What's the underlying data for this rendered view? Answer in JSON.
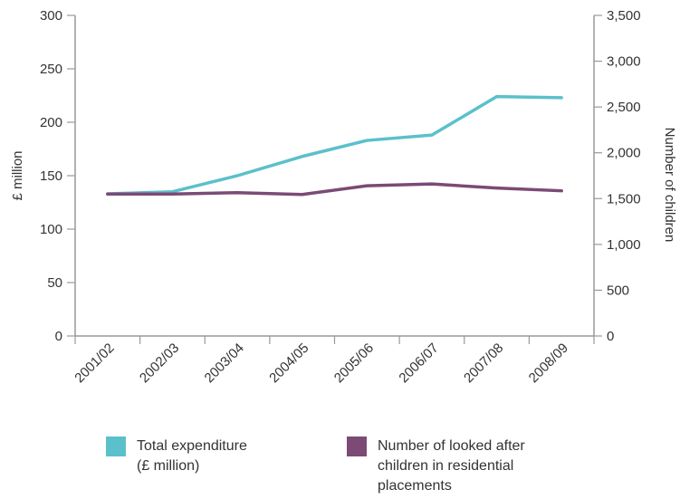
{
  "chart_data": {
    "type": "line",
    "categories": [
      "2001/02",
      "2002/03",
      "2003/04",
      "2004/05",
      "2005/06",
      "2006/07",
      "2007/08",
      "2008/09"
    ],
    "ylabel": "£ million",
    "y2label": "Number of children",
    "ylim": [
      0,
      300
    ],
    "y2lim": [
      0,
      3500
    ],
    "yticks": [
      "0",
      "50",
      "100",
      "150",
      "200",
      "250",
      "300"
    ],
    "y2ticks": [
      "0",
      "500",
      "1,000",
      "1,500",
      "2,000",
      "2,500",
      "3,000",
      "3,500"
    ],
    "grid": false,
    "legend_position": "bottom",
    "series": [
      {
        "name": "Total expenditure (£ million)",
        "legend_lines": [
          "Total expenditure",
          "(£ million)"
        ],
        "axis": "left",
        "color": "#5bc0cb",
        "values": [
          133,
          135,
          150,
          168,
          183,
          188,
          224,
          223
        ]
      },
      {
        "name": "Number of looked after children in residential placements",
        "legend_lines": [
          "Number of looked after",
          "children in residential",
          "placements"
        ],
        "axis": "right",
        "color": "#7b4a75",
        "values": [
          1550,
          1550,
          1565,
          1545,
          1640,
          1660,
          1615,
          1585
        ]
      }
    ],
    "colors": {
      "axis": "#999999",
      "text": "#333333"
    }
  }
}
